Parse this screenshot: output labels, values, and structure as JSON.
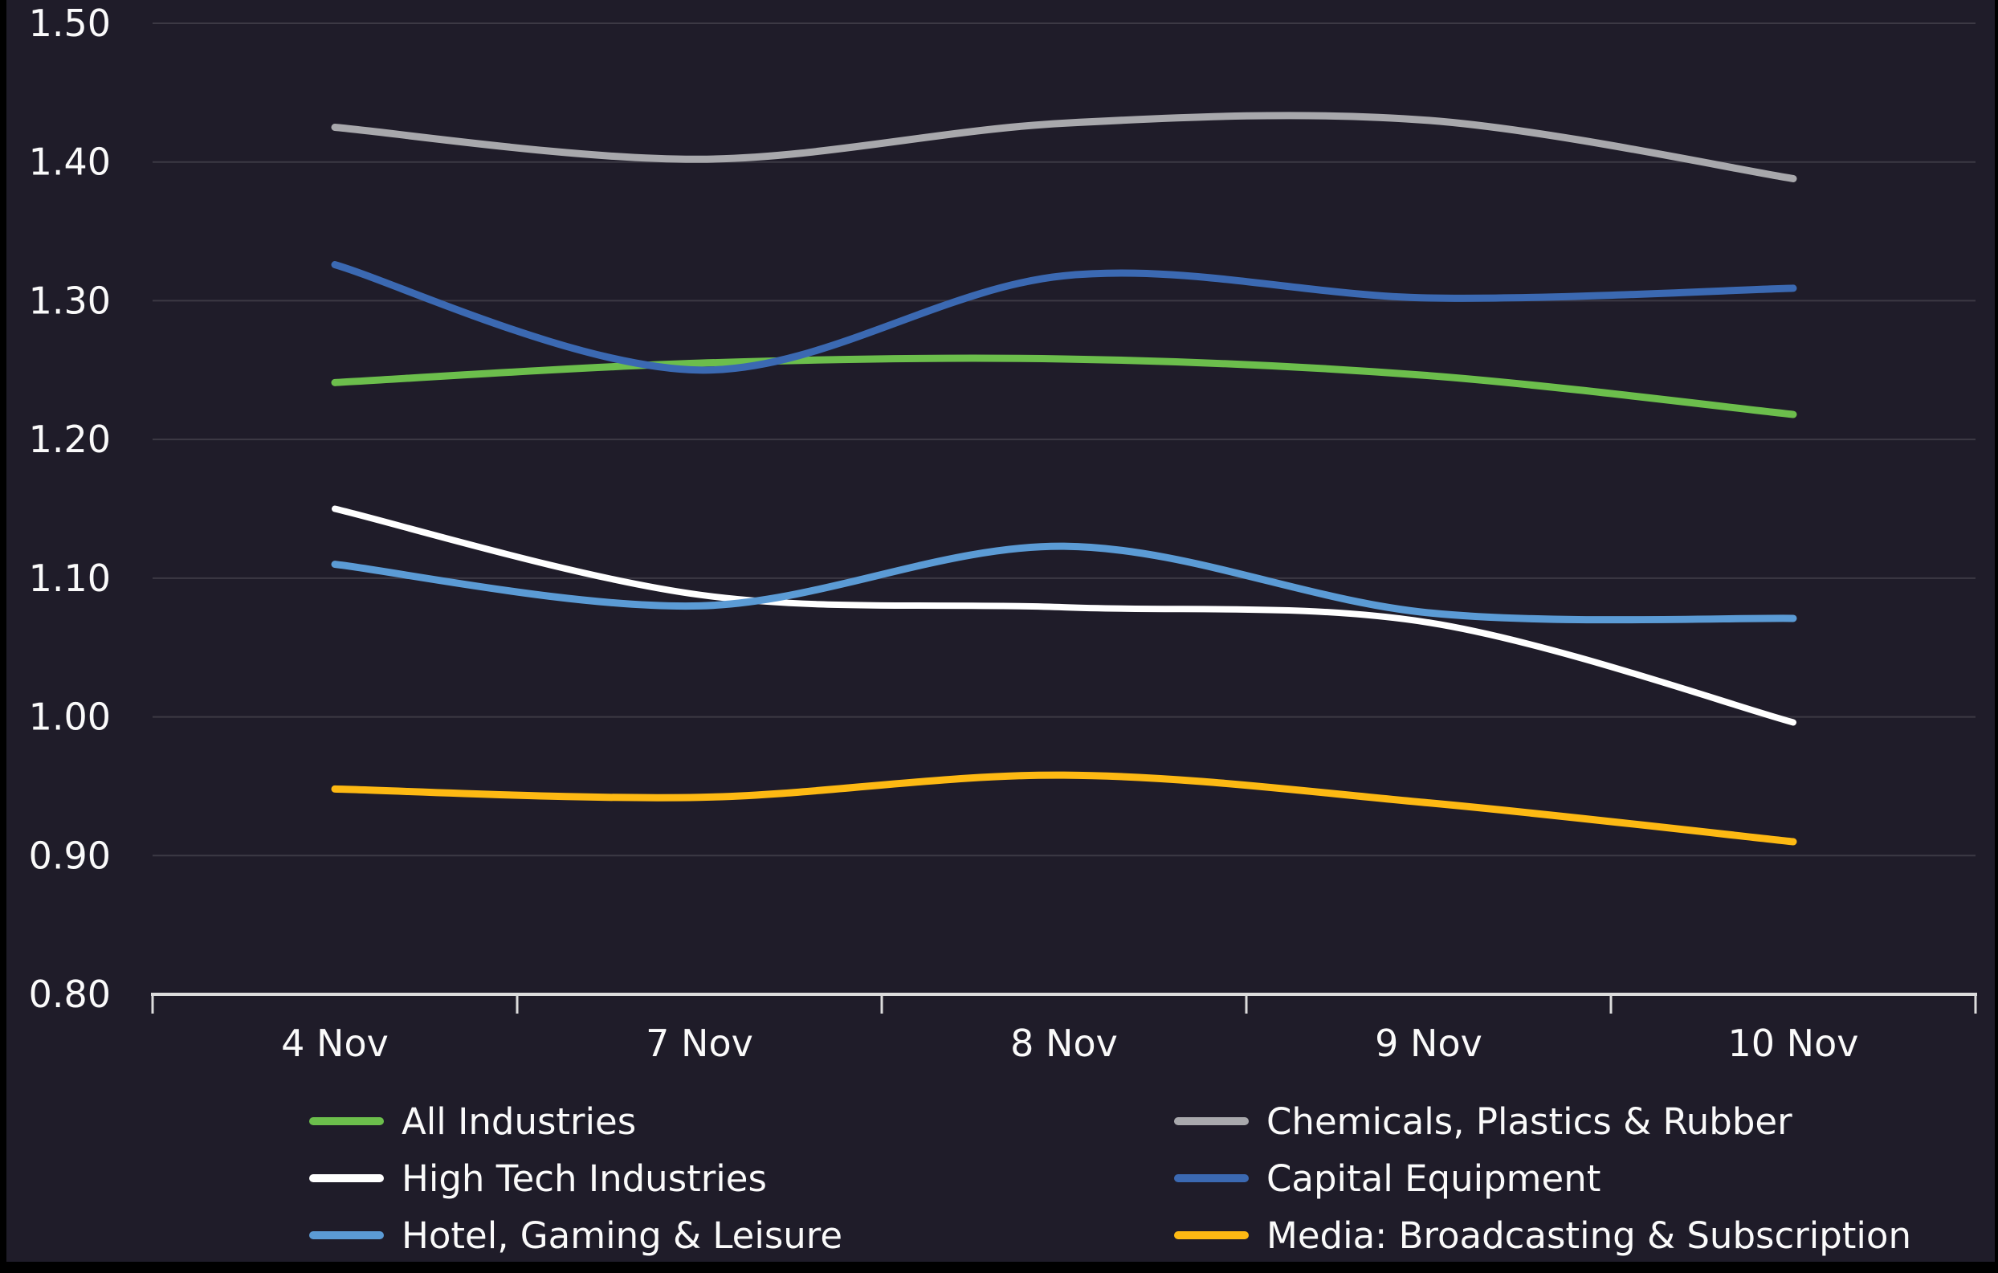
{
  "window": {
    "background_color": "#1F1C29",
    "border_color": "#000000"
  },
  "chart_data": {
    "type": "line",
    "title": "",
    "xlabel": "",
    "ylabel": "",
    "categories": [
      "4 Nov",
      "7 Nov",
      "8 Nov",
      "9 Nov",
      "10 Nov"
    ],
    "series": [
      {
        "name": "All Industries",
        "color": "#6CBE4C",
        "values": [
          1.241,
          1.255,
          1.258,
          1.246,
          1.218
        ]
      },
      {
        "name": "Chemicals, Plastics & Rubber",
        "color": "#A8A8AC",
        "values": [
          1.425,
          1.402,
          1.428,
          1.43,
          1.388
        ]
      },
      {
        "name": "High Tech Industries",
        "color": "#FFFFFF",
        "values": [
          1.15,
          1.088,
          1.079,
          1.068,
          0.996
        ]
      },
      {
        "name": "Capital Equipment",
        "color": "#3B69B2",
        "values": [
          1.326,
          1.25,
          1.318,
          1.302,
          1.309
        ]
      },
      {
        "name": "Hotel, Gaming & Leisure",
        "color": "#5B9BD5",
        "values": [
          1.11,
          1.08,
          1.123,
          1.075,
          1.071
        ]
      },
      {
        "name": "Media: Broadcasting & Subscription",
        "color": "#FDB913",
        "values": [
          0.948,
          0.942,
          0.958,
          0.938,
          0.91
        ]
      }
    ],
    "ylim": [
      0.8,
      1.5
    ],
    "y_tick_step": 0.1,
    "y_tick_labels": [
      "1.50",
      "1.40",
      "1.30",
      "1.20",
      "1.10",
      "1.00",
      "0.90",
      "0.80"
    ],
    "grid": "horizontal",
    "grid_color": "#3C3944",
    "axis_color": "#DCDCDC",
    "text_color": "#FAFAFA",
    "legend_position": "bottom-two-columns"
  }
}
